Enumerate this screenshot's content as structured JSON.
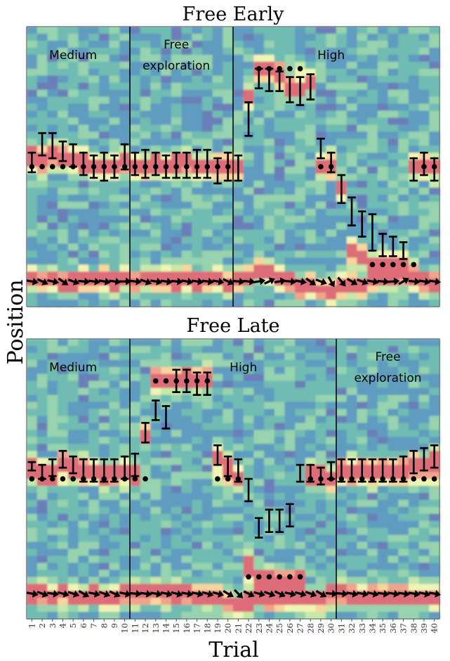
{
  "figure": {
    "ylabel": "Position",
    "xlabel": "Trial"
  },
  "chart_data": [
    {
      "type": "heatmap",
      "title": "Free Early",
      "xlabel": "Trial",
      "ylabel": "Position",
      "x_ticks": [
        "1",
        "2",
        "3",
        "4",
        "5",
        "6",
        "7",
        "8",
        "9",
        "10",
        "11",
        "12",
        "13",
        "14",
        "15",
        "16",
        "17",
        "18",
        "19",
        "20",
        "21",
        "22",
        "23",
        "24",
        "25",
        "26",
        "27",
        "28",
        "29",
        "30",
        "31",
        "32",
        "33",
        "34",
        "35",
        "36",
        "37",
        "38",
        "39",
        "40"
      ],
      "xlim": [
        0.5,
        40.5
      ],
      "ylim": [
        0,
        1
      ],
      "phase_boundaries": [
        10,
        20
      ],
      "phase_labels": [
        {
          "text": "Medium",
          "lines": [
            "Medium"
          ],
          "x": 5,
          "y": 0.9
        },
        {
          "text": "Free exploration",
          "lines": [
            "Free",
            "exploration"
          ],
          "x": 15,
          "y": 0.9
        },
        {
          "text": "High",
          "lines": [
            "High"
          ],
          "x": 30,
          "y": 0.9
        }
      ],
      "target_positions": [
        0.5,
        0.5,
        0.5,
        0.5,
        0.5,
        0.5,
        0.5,
        0.5,
        0.5,
        0.5,
        0.5,
        0.5,
        0.5,
        0.5,
        0.5,
        0.5,
        0.5,
        0.5,
        0.5,
        0.5,
        null,
        null,
        0.85,
        0.85,
        0.85,
        0.85,
        0.85,
        null,
        0.5,
        0.5,
        null,
        null,
        null,
        0.15,
        0.15,
        0.15,
        0.15,
        0.15,
        0.5,
        0.5
      ],
      "error_bars": [
        [
          0.48,
          0.55
        ],
        [
          0.54,
          0.62
        ],
        [
          0.53,
          0.62
        ],
        [
          0.52,
          0.59
        ],
        [
          0.5,
          0.58
        ],
        [
          0.47,
          0.55
        ],
        [
          0.46,
          0.54
        ],
        [
          0.45,
          0.55
        ],
        [
          0.46,
          0.54
        ],
        [
          0.49,
          0.58
        ],
        [
          0.47,
          0.55
        ],
        [
          0.46,
          0.56
        ],
        [
          0.47,
          0.55
        ],
        [
          0.46,
          0.54
        ],
        [
          0.46,
          0.55
        ],
        [
          0.46,
          0.55
        ],
        [
          0.46,
          0.56
        ],
        [
          0.46,
          0.56
        ],
        [
          0.44,
          0.53
        ],
        [
          0.45,
          0.55
        ],
        [
          0.45,
          0.54
        ],
        [
          0.61,
          0.73
        ],
        [
          0.78,
          0.85
        ],
        [
          0.77,
          0.85
        ],
        [
          0.77,
          0.84
        ],
        [
          0.73,
          0.82
        ],
        [
          0.72,
          0.82
        ],
        [
          0.74,
          0.83
        ],
        [
          0.53,
          0.6
        ],
        [
          0.48,
          0.55
        ],
        [
          0.37,
          0.47
        ],
        [
          0.29,
          0.39
        ],
        [
          0.25,
          0.34
        ],
        [
          0.2,
          0.33
        ],
        [
          0.18,
          0.26
        ],
        [
          0.18,
          0.25
        ],
        [
          0.17,
          0.23
        ],
        [
          0.45,
          0.53
        ],
        [
          0.47,
          0.55
        ],
        [
          0.45,
          0.53
        ]
      ],
      "arrow_angles_deg": [
        10,
        25,
        12,
        35,
        20,
        5,
        8,
        10,
        8,
        0,
        5,
        20,
        10,
        8,
        5,
        10,
        8,
        8,
        10,
        25,
        5,
        5,
        -10,
        -25,
        -10,
        5,
        10,
        35,
        20,
        60,
        50,
        30,
        20,
        10,
        5,
        -5,
        -30,
        5,
        10,
        8
      ],
      "heatmap_hot_paths": [
        [
          0.55,
          0.53,
          0.55,
          0.54,
          0.53,
          0.52,
          0.5,
          0.5,
          0.5,
          0.52,
          0.5,
          0.5,
          0.51,
          0.5,
          0.51,
          0.52,
          0.5,
          0.5,
          0.5,
          0.5,
          0.5,
          0.75,
          0.85,
          0.85,
          0.82,
          0.78,
          0.78,
          0.8,
          0.5,
          0.5,
          0.42,
          0.2,
          0.18,
          0.15,
          0.15,
          0.15,
          0.15,
          0.5,
          0.5,
          0.5
        ],
        [
          0.1,
          0.09,
          0.1,
          0.08,
          0.09,
          0.1,
          0.09,
          0.1,
          0.09,
          0.1,
          0.09,
          0.1,
          0.09,
          0.1,
          0.09,
          0.1,
          0.09,
          0.1,
          0.1,
          0.08,
          0.1,
          0.11,
          0.13,
          0.12,
          0.1,
          0.09,
          0.07,
          0.08,
          0.06,
          0.05,
          0.07,
          0.08,
          0.07,
          0.09,
          0.1,
          0.11,
          0.12,
          0.1,
          0.09,
          0.09
        ]
      ]
    },
    {
      "type": "heatmap",
      "title": "Free Late",
      "xlabel": "Trial",
      "ylabel": "Position",
      "x_ticks": [
        "1",
        "2",
        "3",
        "4",
        "5",
        "6",
        "7",
        "8",
        "9",
        "10",
        "11",
        "12",
        "13",
        "14",
        "15",
        "16",
        "17",
        "18",
        "19",
        "20",
        "21",
        "22",
        "23",
        "24",
        "25",
        "26",
        "27",
        "28",
        "29",
        "30",
        "31",
        "32",
        "33",
        "34",
        "35",
        "36",
        "37",
        "38",
        "39",
        "40"
      ],
      "xlim": [
        0.5,
        40.5
      ],
      "ylim": [
        0,
        1
      ],
      "phase_boundaries": [
        10,
        30
      ],
      "phase_labels": [
        {
          "text": "Medium",
          "lines": [
            "Medium"
          ],
          "x": 5,
          "y": 0.9
        },
        {
          "text": "High",
          "lines": [
            "High"
          ],
          "x": 21.5,
          "y": 0.9
        },
        {
          "text": "Free exploration",
          "lines": [
            "Free",
            "exploration"
          ],
          "x": 35.5,
          "y": 0.9
        }
      ],
      "target_positions": [
        0.5,
        0.5,
        0.5,
        0.5,
        0.5,
        0.5,
        0.5,
        0.5,
        0.5,
        0.5,
        0.5,
        0.5,
        0.85,
        0.85,
        0.85,
        0.85,
        0.85,
        0.85,
        0.5,
        0.5,
        0.5,
        0.15,
        0.15,
        0.15,
        0.15,
        0.15,
        0.15,
        0.5,
        0.5,
        0.5,
        0.5,
        0.5,
        0.5,
        0.5,
        0.5,
        0.5,
        0.5,
        0.5,
        0.5,
        0.5
      ],
      "error_bars": [
        [
          0.53,
          0.56
        ],
        [
          0.5,
          0.55
        ],
        [
          0.51,
          0.57
        ],
        [
          0.54,
          0.6
        ],
        [
          0.52,
          0.58
        ],
        [
          0.49,
          0.57
        ],
        [
          0.49,
          0.57
        ],
        [
          0.49,
          0.57
        ],
        [
          0.49,
          0.57
        ],
        [
          0.5,
          0.58
        ],
        [
          0.51,
          0.59
        ],
        [
          0.63,
          0.7
        ],
        [
          0.71,
          0.78
        ],
        [
          0.68,
          0.76
        ],
        [
          0.81,
          0.89
        ],
        [
          0.81,
          0.89
        ],
        [
          0.8,
          0.88
        ],
        [
          0.8,
          0.88
        ],
        [
          0.55,
          0.62
        ],
        [
          0.51,
          0.58
        ],
        [
          0.49,
          0.57
        ],
        [
          0.42,
          0.5
        ],
        [
          0.29,
          0.36
        ],
        [
          0.31,
          0.39
        ],
        [
          0.31,
          0.39
        ],
        [
          0.33,
          0.41
        ],
        [
          0.49,
          0.55
        ],
        [
          0.49,
          0.55
        ],
        [
          0.48,
          0.54
        ],
        [
          0.5,
          0.56
        ],
        [
          0.49,
          0.57
        ],
        [
          0.49,
          0.57
        ],
        [
          0.49,
          0.57
        ],
        [
          0.49,
          0.57
        ],
        [
          0.49,
          0.57
        ],
        [
          0.49,
          0.57
        ],
        [
          0.49,
          0.58
        ],
        [
          0.52,
          0.6
        ],
        [
          0.53,
          0.61
        ],
        [
          0.54,
          0.62
        ]
      ],
      "arrow_angles_deg": [
        10,
        20,
        8,
        15,
        18,
        30,
        12,
        20,
        25,
        12,
        5,
        8,
        10,
        12,
        15,
        10,
        12,
        15,
        15,
        30,
        45,
        25,
        15,
        20,
        25,
        12,
        15,
        20,
        30,
        5,
        5,
        10,
        10,
        12,
        8,
        10,
        8,
        10,
        12,
        10
      ],
      "heatmap_hot_paths": [
        [
          0.54,
          0.52,
          0.52,
          0.56,
          0.55,
          0.53,
          0.53,
          0.52,
          0.52,
          0.53,
          0.52,
          0.66,
          0.86,
          0.86,
          0.86,
          0.86,
          0.86,
          0.86,
          0.58,
          0.54,
          0.5,
          0.2,
          0.13,
          0.13,
          0.13,
          0.13,
          0.13,
          0.52,
          0.52,
          0.5,
          0.53,
          0.53,
          0.53,
          0.53,
          0.53,
          0.53,
          0.54,
          0.55,
          0.55,
          0.56
        ],
        [
          0.09,
          0.09,
          0.08,
          0.09,
          0.08,
          0.08,
          0.09,
          0.08,
          0.08,
          0.09,
          0.09,
          0.09,
          0.09,
          0.09,
          0.09,
          0.09,
          0.08,
          0.08,
          0.08,
          0.06,
          0.05,
          0.06,
          0.08,
          0.07,
          0.07,
          0.08,
          0.08,
          0.07,
          0.07,
          0.09,
          0.09,
          0.08,
          0.08,
          0.08,
          0.08,
          0.08,
          0.08,
          0.08,
          0.08,
          0.08
        ]
      ]
    }
  ]
}
